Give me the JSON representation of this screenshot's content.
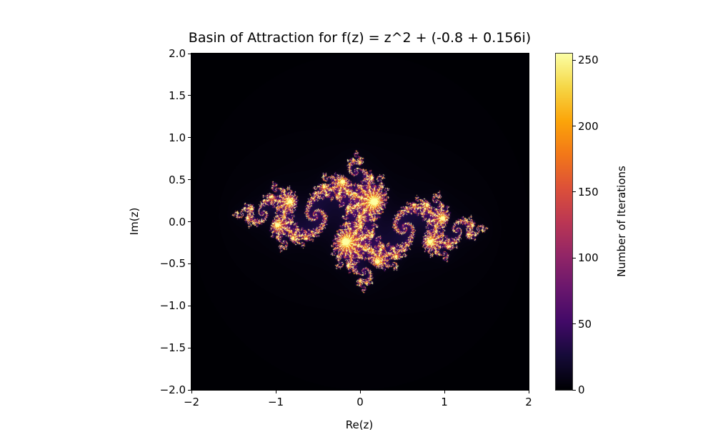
{
  "chart_data": {
    "type": "heatmap",
    "title": "Basin of Attraction for f(z) = z^2 + (-0.8 + 0.156i)",
    "xlabel": "Re(z)",
    "ylabel": "Im(z)",
    "c_real": -0.8,
    "c_imag": 0.156,
    "max_iter": 256,
    "escape_radius": 2,
    "xlim": [
      -2,
      2
    ],
    "ylim": [
      -2,
      2
    ],
    "xticks": [
      -2,
      -1,
      0,
      1,
      2
    ],
    "xtick_labels": [
      "−2",
      "−1",
      "0",
      "1",
      "2"
    ],
    "yticks": [
      2.0,
      1.5,
      1.0,
      0.5,
      0.0,
      -0.5,
      -1.0,
      -1.5,
      -2.0
    ],
    "ytick_labels": [
      "2.0",
      "1.5",
      "1.0",
      "0.5",
      "0.0",
      "−0.5",
      "−1.0",
      "−1.5",
      "−2.0"
    ],
    "colormap": "inferno",
    "colorbar": {
      "label": "Number of Iterations",
      "range": [
        0,
        255
      ],
      "ticks": [
        0,
        50,
        100,
        150,
        200,
        250
      ],
      "tick_labels": [
        "0",
        "50",
        "100",
        "150",
        "200",
        "250"
      ]
    }
  }
}
